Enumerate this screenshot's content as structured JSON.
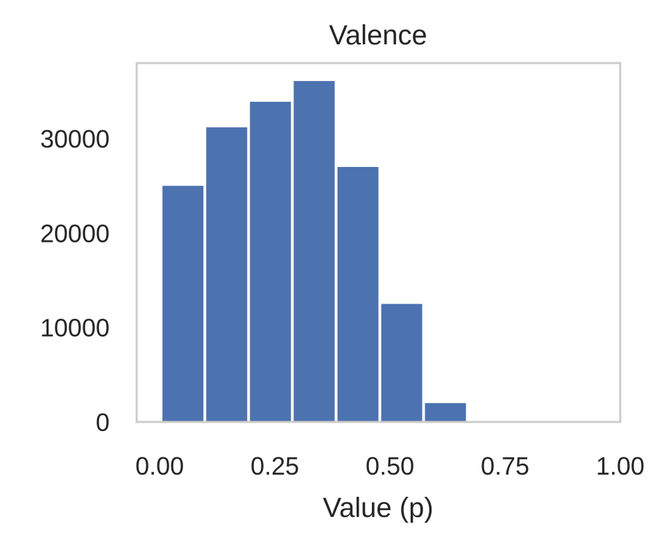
{
  "chart_data": {
    "type": "bar",
    "title": "Valence",
    "xlabel": "Value (p)",
    "ylabel": "",
    "xlim": [
      -0.05,
      1.0
    ],
    "ylim": [
      0,
      38000
    ],
    "xticks": [
      "0.00",
      "0.25",
      "0.50",
      "0.75",
      "1.00"
    ],
    "xtick_values": [
      0.0,
      0.25,
      0.5,
      0.75,
      1.0
    ],
    "yticks": [
      "0",
      "10000",
      "20000",
      "30000"
    ],
    "ytick_values": [
      0,
      10000,
      20000,
      30000
    ],
    "bins": [
      {
        "x0": 0.006,
        "x1": 0.095,
        "value": 25000
      },
      {
        "x0": 0.101,
        "x1": 0.19,
        "value": 31200
      },
      {
        "x0": 0.196,
        "x1": 0.285,
        "value": 33900
      },
      {
        "x0": 0.291,
        "x1": 0.38,
        "value": 36100
      },
      {
        "x0": 0.386,
        "x1": 0.475,
        "value": 27000
      },
      {
        "x0": 0.481,
        "x1": 0.57,
        "value": 12500
      },
      {
        "x0": 0.576,
        "x1": 0.665,
        "value": 2000
      }
    ],
    "grid": false,
    "bar_color": "#4c72b0",
    "frame_color": "#cccccc"
  }
}
